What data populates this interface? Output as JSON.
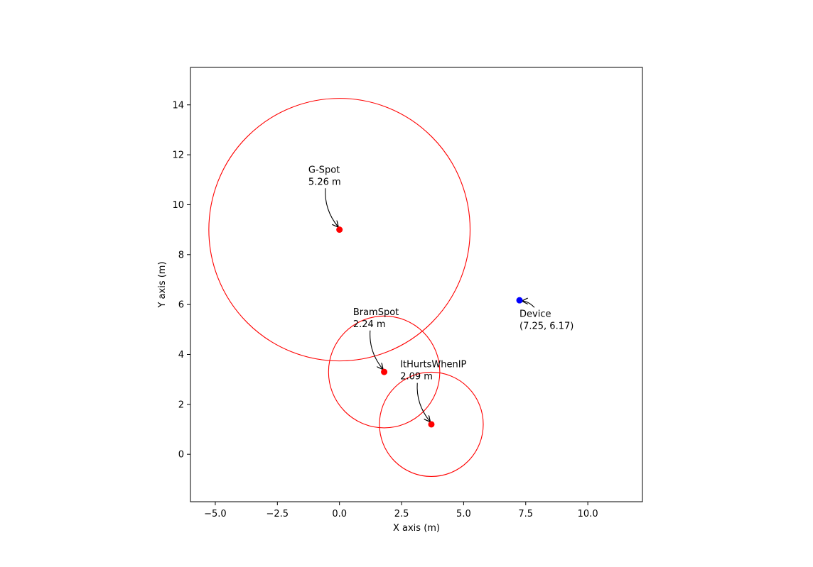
{
  "chart_data": {
    "type": "scatter",
    "title": "",
    "xlabel": "X axis (m)",
    "ylabel": "Y axis (m)",
    "xlim": [
      -6.0,
      12.2
    ],
    "ylim": [
      -1.9,
      15.5
    ],
    "grid": false,
    "x_ticks": [
      -5.0,
      -2.5,
      0.0,
      2.5,
      5.0,
      7.5,
      10.0
    ],
    "x_tick_labels": [
      "−5.0",
      "−2.5",
      "0.0",
      "2.5",
      "5.0",
      "7.5",
      "10.0"
    ],
    "y_ticks": [
      0,
      2,
      4,
      6,
      8,
      10,
      12,
      14
    ],
    "y_tick_labels": [
      "0",
      "2",
      "4",
      "6",
      "8",
      "10",
      "12",
      "14"
    ],
    "anchors": [
      {
        "name": "G-Spot",
        "x": 0.0,
        "y": 9.0,
        "distance": 5.26,
        "distance_label": "5.26 m",
        "color": "#ff0000",
        "label_offset": [
          -0.05,
          2.0
        ]
      },
      {
        "name": "BramSpot",
        "x": 1.8,
        "y": 3.3,
        "distance": 2.24,
        "distance_label": "2.24 m",
        "color": "#ff0000",
        "label_offset": [
          -0.05,
          2.0
        ]
      },
      {
        "name": "ItHurtsWhenIP",
        "x": 3.7,
        "y": 1.2,
        "distance": 2.09,
        "distance_label": "2.09 m",
        "color": "#ff0000",
        "label_offset": [
          -0.05,
          2.0
        ]
      }
    ],
    "device": {
      "name": "Device",
      "x": 7.25,
      "y": 6.17,
      "coord_label": "(7.25, 6.17)",
      "color": "#0000ff",
      "label_offset": [
        0.0,
        -0.6
      ]
    }
  }
}
